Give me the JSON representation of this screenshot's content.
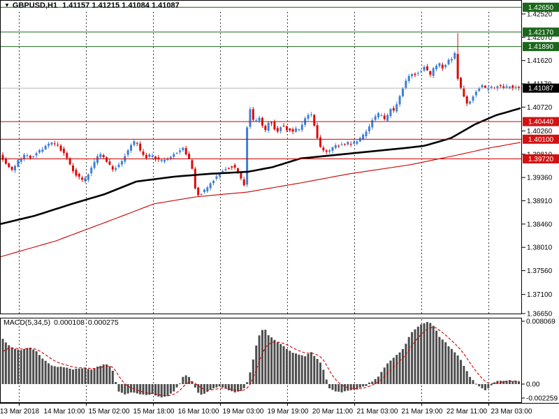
{
  "window": {
    "collapse_icon": "▼",
    "symbol": "GBPUSD,H1",
    "quote_line": "1.41157 1.41215 1.41084 1.41087"
  },
  "macd_panel": {
    "label": "MACD(5,34,5)",
    "value_1": "0.000108",
    "value_2": "0.000275",
    "axis_labels": [
      {
        "text": "0.008069",
        "value": 0.008069
      },
      {
        "text": "0.00",
        "value": 0.0
      },
      {
        "text": "-0.002259",
        "value": -0.002259
      }
    ]
  },
  "price_axis": {
    "tick_labels": [
      "1.42520",
      "1.42070",
      "1.41620",
      "1.41170",
      "1.40720",
      "1.40260",
      "1.39810",
      "1.39360",
      "1.38910",
      "1.38460",
      "1.38010",
      "1.37560",
      "1.37100",
      "1.36650"
    ]
  },
  "time_axis": {
    "labels": [
      "13 Mar 2018",
      "14 Mar 10:00",
      "15 Mar 02:00",
      "15 Mar 18:00",
      "16 Mar 10:00",
      "19 Mar 03:00",
      "19 Mar 19:00",
      "20 Mar 11:00",
      "21 Mar 03:00",
      "21 Mar 19:00",
      "22 Mar 11:00",
      "23 Mar 03:00"
    ]
  },
  "levels": [
    {
      "label": "1.42650",
      "value": 1.4265,
      "line_color": "#1a661a",
      "badge_color": "#1a661a",
      "current": false
    },
    {
      "label": "1.42170",
      "value": 1.4217,
      "line_color": "#1a661a",
      "badge_color": "#1a661a",
      "current": false
    },
    {
      "label": "1.41890",
      "value": 1.4189,
      "line_color": "#1a661a",
      "badge_color": "#1a661a",
      "current": false
    },
    {
      "label": "1.41087",
      "value": 1.41087,
      "line_color": "#b8b8b8",
      "badge_color": "#000000",
      "current": true
    },
    {
      "label": "1.40440",
      "value": 1.4044,
      "line_color": "#cc0000",
      "badge_color": "#d21111",
      "current": false
    },
    {
      "label": "1.40100",
      "value": 1.401,
      "line_color": "#cc0000",
      "badge_color": "#d21111",
      "current": false
    },
    {
      "label": "1.39720",
      "value": 1.3972,
      "line_color": "#cc0000",
      "badge_color": "#d21111",
      "current": false
    }
  ],
  "colors": {
    "background": "#ffffff",
    "border": "#000000",
    "grid": "#3c3c3c",
    "bull": "#3e7fd4",
    "bear": "#dc0a0a",
    "ma_black": "#000000",
    "ma_red": "#cc0000",
    "histogram": "#4d4d4d",
    "signal": "#cc0000",
    "current_price_line": "#b8b8b8",
    "badge_text": "#ffffff"
  },
  "chart_data": {
    "type": "candlestick",
    "symbol": "GBPUSD",
    "timeframe": "H1",
    "title": "GBPUSD,H1 1.41157 1.41215 1.41084 1.41087",
    "ohlc_display": {
      "open": "1.41157",
      "high": "1.41215",
      "low": "1.41084",
      "close": "1.41087"
    },
    "y_axis": {
      "top_tick": 1.4252,
      "bottom_tick": 1.3665,
      "tick_step": 0.0045,
      "ylim": [
        1.3665,
        1.4265
      ]
    },
    "grid": "vertical-dashed",
    "legend_position": "none",
    "candle_count": 170,
    "price_path_anchors": [
      [
        2,
        1.3982
      ],
      [
        8,
        1.3968
      ],
      [
        14,
        1.3956
      ],
      [
        20,
        1.395
      ],
      [
        28,
        1.3968
      ],
      [
        36,
        1.3978
      ],
      [
        44,
        1.3975
      ],
      [
        52,
        1.3981
      ],
      [
        60,
        1.3989
      ],
      [
        68,
        1.3997
      ],
      [
        76,
        1.4001
      ],
      [
        84,
        1.3997
      ],
      [
        92,
        1.3987
      ],
      [
        100,
        1.3967
      ],
      [
        108,
        1.3947
      ],
      [
        116,
        1.3934
      ],
      [
        122,
        1.3928
      ],
      [
        128,
        1.3941
      ],
      [
        136,
        1.3962
      ],
      [
        144,
        1.3983
      ],
      [
        152,
        1.3975
      ],
      [
        158,
        1.3961
      ],
      [
        164,
        1.3951
      ],
      [
        170,
        1.3957
      ],
      [
        176,
        1.3967
      ],
      [
        182,
        1.3981
      ],
      [
        190,
        1.4
      ],
      [
        197,
        1.4006
      ],
      [
        203,
        1.3986
      ],
      [
        210,
        1.3974
      ],
      [
        218,
        1.398
      ],
      [
        226,
        1.3971
      ],
      [
        234,
        1.3967
      ],
      [
        242,
        1.3971
      ],
      [
        250,
        1.398
      ],
      [
        258,
        1.3988
      ],
      [
        264,
        1.3991
      ],
      [
        270,
        1.3976
      ],
      [
        276,
        1.3964
      ],
      [
        280,
        1.3922
      ],
      [
        285,
        1.39
      ],
      [
        290,
        1.3906
      ],
      [
        296,
        1.3913
      ],
      [
        302,
        1.3921
      ],
      [
        310,
        1.3936
      ],
      [
        318,
        1.3948
      ],
      [
        326,
        1.3953
      ],
      [
        334,
        1.3958
      ],
      [
        340,
        1.3954
      ],
      [
        346,
        1.3937
      ],
      [
        351,
        1.3917
      ],
      [
        353,
        1.3946
      ],
      [
        356,
        1.404
      ],
      [
        358,
        1.408
      ],
      [
        362,
        1.4056
      ],
      [
        366,
        1.4042
      ],
      [
        370,
        1.4049
      ],
      [
        374,
        1.4052
      ],
      [
        378,
        1.4034
      ],
      [
        382,
        1.4028
      ],
      [
        386,
        1.4041
      ],
      [
        390,
        1.4046
      ],
      [
        394,
        1.403
      ],
      [
        398,
        1.4026
      ],
      [
        402,
        1.4029
      ],
      [
        406,
        1.4038
      ],
      [
        410,
        1.4033
      ],
      [
        414,
        1.4027
      ],
      [
        418,
        1.4029
      ],
      [
        422,
        1.4025
      ],
      [
        426,
        1.4031
      ],
      [
        430,
        1.4028
      ],
      [
        434,
        1.4036
      ],
      [
        438,
        1.4048
      ],
      [
        443,
        1.4056
      ],
      [
        447,
        1.4059
      ],
      [
        451,
        1.4041
      ],
      [
        455,
        1.4019
      ],
      [
        459,
        1.3999
      ],
      [
        463,
        1.399
      ],
      [
        470,
        1.3988
      ],
      [
        478,
        1.3993
      ],
      [
        486,
        1.3998
      ],
      [
        494,
        1.4001
      ],
      [
        500,
        1.4003
      ],
      [
        506,
        1.4
      ],
      [
        512,
        1.4006
      ],
      [
        518,
        1.4013
      ],
      [
        524,
        1.4021
      ],
      [
        530,
        1.4032
      ],
      [
        536,
        1.4048
      ],
      [
        541,
        1.4056
      ],
      [
        546,
        1.4061
      ],
      [
        550,
        1.4051
      ],
      [
        554,
        1.4046
      ],
      [
        558,
        1.4061
      ],
      [
        562,
        1.4071
      ],
      [
        566,
        1.4063
      ],
      [
        570,
        1.4076
      ],
      [
        574,
        1.4091
      ],
      [
        578,
        1.4106
      ],
      [
        582,
        1.4119
      ],
      [
        586,
        1.4128
      ],
      [
        590,
        1.4137
      ],
      [
        594,
        1.413
      ],
      [
        598,
        1.4141
      ],
      [
        602,
        1.4136
      ],
      [
        606,
        1.4145
      ],
      [
        610,
        1.4151
      ],
      [
        614,
        1.4142
      ],
      [
        618,
        1.4133
      ],
      [
        622,
        1.4146
      ],
      [
        626,
        1.4153
      ],
      [
        630,
        1.4157
      ],
      [
        634,
        1.4146
      ],
      [
        638,
        1.4153
      ],
      [
        642,
        1.4159
      ],
      [
        646,
        1.4169
      ],
      [
        650,
        1.4163
      ],
      [
        653,
        1.4176
      ],
      [
        656,
        1.4136
      ],
      [
        659,
        1.4116
      ],
      [
        662,
        1.4108
      ],
      [
        665,
        1.4097
      ],
      [
        668,
        1.4082
      ],
      [
        671,
        1.4076
      ],
      [
        674,
        1.4081
      ],
      [
        677,
        1.4089
      ],
      [
        680,
        1.4096
      ],
      [
        684,
        1.4103
      ],
      [
        688,
        1.4108
      ],
      [
        692,
        1.4113
      ],
      [
        696,
        1.4108
      ],
      [
        700,
        1.4106
      ],
      [
        705,
        1.4112
      ],
      [
        710,
        1.4108
      ],
      [
        715,
        1.4113
      ],
      [
        720,
        1.4109
      ],
      [
        725,
        1.4107
      ],
      [
        730,
        1.4113
      ],
      [
        735,
        1.411
      ],
      [
        740,
        1.4108
      ],
      [
        744,
        1.4109
      ]
    ],
    "spike": {
      "x": 655,
      "high": 1.4215
    },
    "last_close": 1.41087,
    "ma_black_anchors": [
      [
        0,
        1.38459
      ],
      [
        50,
        1.38621
      ],
      [
        100,
        1.38837
      ],
      [
        150,
        1.39039
      ],
      [
        195,
        1.39282
      ],
      [
        250,
        1.39377
      ],
      [
        300,
        1.39431
      ],
      [
        355,
        1.39471
      ],
      [
        390,
        1.3956
      ],
      [
        430,
        1.39728
      ],
      [
        480,
        1.39795
      ],
      [
        530,
        1.39863
      ],
      [
        580,
        1.3993
      ],
      [
        607,
        1.39971
      ],
      [
        645,
        1.40119
      ],
      [
        680,
        1.40389
      ],
      [
        710,
        1.40564
      ],
      [
        745,
        1.40699
      ]
    ],
    "ma_red_anchors": [
      [
        0,
        1.37825
      ],
      [
        80,
        1.38135
      ],
      [
        160,
        1.3854
      ],
      [
        220,
        1.3885
      ],
      [
        280,
        1.38985
      ],
      [
        355,
        1.3908
      ],
      [
        430,
        1.39255
      ],
      [
        500,
        1.39431
      ],
      [
        587,
        1.39606
      ],
      [
        650,
        1.39781
      ],
      [
        700,
        1.3993
      ],
      [
        745,
        1.40038
      ]
    ],
    "macd": {
      "type": "histogram+signal",
      "indicator": "MACD(5,34,5)",
      "scale_max": 0.008069,
      "scale_min": -0.002259,
      "value_anchors": [
        [
          2,
          0.006
        ],
        [
          10,
          0.0052
        ],
        [
          20,
          0.0046
        ],
        [
          30,
          0.0044
        ],
        [
          42,
          0.0047
        ],
        [
          52,
          0.0042
        ],
        [
          62,
          0.0032
        ],
        [
          75,
          0.0023
        ],
        [
          90,
          0.0022
        ],
        [
          105,
          0.0019
        ],
        [
          120,
          0.0021
        ],
        [
          132,
          0.0019
        ],
        [
          145,
          0.0024
        ],
        [
          152,
          0.0026
        ],
        [
          160,
          0.0021
        ],
        [
          164,
          0.001
        ],
        [
          168,
          -0.0008
        ],
        [
          178,
          -0.0013
        ],
        [
          190,
          -0.001
        ],
        [
          205,
          -0.0014
        ],
        [
          218,
          -0.0013
        ],
        [
          232,
          -0.0017
        ],
        [
          240,
          -0.0016
        ],
        [
          250,
          -0.0008
        ],
        [
          258,
          0.0002
        ],
        [
          263,
          0.0011
        ],
        [
          268,
          0.0012
        ],
        [
          274,
          0.0006
        ],
        [
          280,
          -0.0006
        ],
        [
          286,
          -0.0015
        ],
        [
          293,
          -0.0012
        ],
        [
          300,
          -0.0008
        ],
        [
          308,
          -0.0005
        ],
        [
          315,
          -0.0003
        ],
        [
          322,
          -0.0006
        ],
        [
          330,
          -0.0009
        ],
        [
          337,
          -0.0011
        ],
        [
          344,
          -0.0009
        ],
        [
          350,
          -0.0005
        ],
        [
          356,
          0.0008
        ],
        [
          362,
          0.003
        ],
        [
          368,
          0.0055
        ],
        [
          373,
          0.0068
        ],
        [
          378,
          0.0072
        ],
        [
          385,
          0.0062
        ],
        [
          392,
          0.0057
        ],
        [
          400,
          0.0052
        ],
        [
          408,
          0.0047
        ],
        [
          418,
          0.0041
        ],
        [
          428,
          0.0038
        ],
        [
          437,
          0.0036
        ],
        [
          445,
          0.0041
        ],
        [
          452,
          0.0034
        ],
        [
          458,
          0.0028
        ],
        [
          464,
          0.0016
        ],
        [
          468,
          0.0004
        ],
        [
          472,
          -0.0006
        ],
        [
          480,
          -0.0009
        ],
        [
          488,
          -0.0011
        ],
        [
          496,
          -0.0009
        ],
        [
          505,
          -0.0008
        ],
        [
          512,
          -0.0006
        ],
        [
          518,
          -0.0004
        ],
        [
          524,
          -0.0002
        ],
        [
          529,
          0.0003
        ],
        [
          534,
          0.0004
        ],
        [
          540,
          0.0008
        ],
        [
          546,
          0.0016
        ],
        [
          552,
          0.0024
        ],
        [
          558,
          0.003
        ],
        [
          565,
          0.0035
        ],
        [
          572,
          0.004
        ],
        [
          578,
          0.0046
        ],
        [
          584,
          0.0058
        ],
        [
          590,
          0.0068
        ],
        [
          596,
          0.0072
        ],
        [
          602,
          0.0076
        ],
        [
          608,
          0.0079
        ],
        [
          613,
          0.008
        ],
        [
          618,
          0.0077
        ],
        [
          624,
          0.007
        ],
        [
          630,
          0.0058
        ],
        [
          636,
          0.0056
        ],
        [
          642,
          0.0048
        ],
        [
          648,
          0.0044
        ],
        [
          654,
          0.0038
        ],
        [
          660,
          0.003
        ],
        [
          666,
          0.002
        ],
        [
          672,
          0.001
        ],
        [
          678,
          0.0004
        ],
        [
          684,
          -0.0002
        ],
        [
          690,
          -0.0006
        ],
        [
          696,
          -0.0008
        ],
        [
          701,
          -0.0004
        ],
        [
          706,
          0.0001
        ],
        [
          712,
          0.0004
        ],
        [
          718,
          0.0005
        ],
        [
          724,
          0.0004
        ],
        [
          730,
          0.0005
        ],
        [
          736,
          0.0004
        ],
        [
          742,
          0.0004
        ]
      ]
    }
  }
}
